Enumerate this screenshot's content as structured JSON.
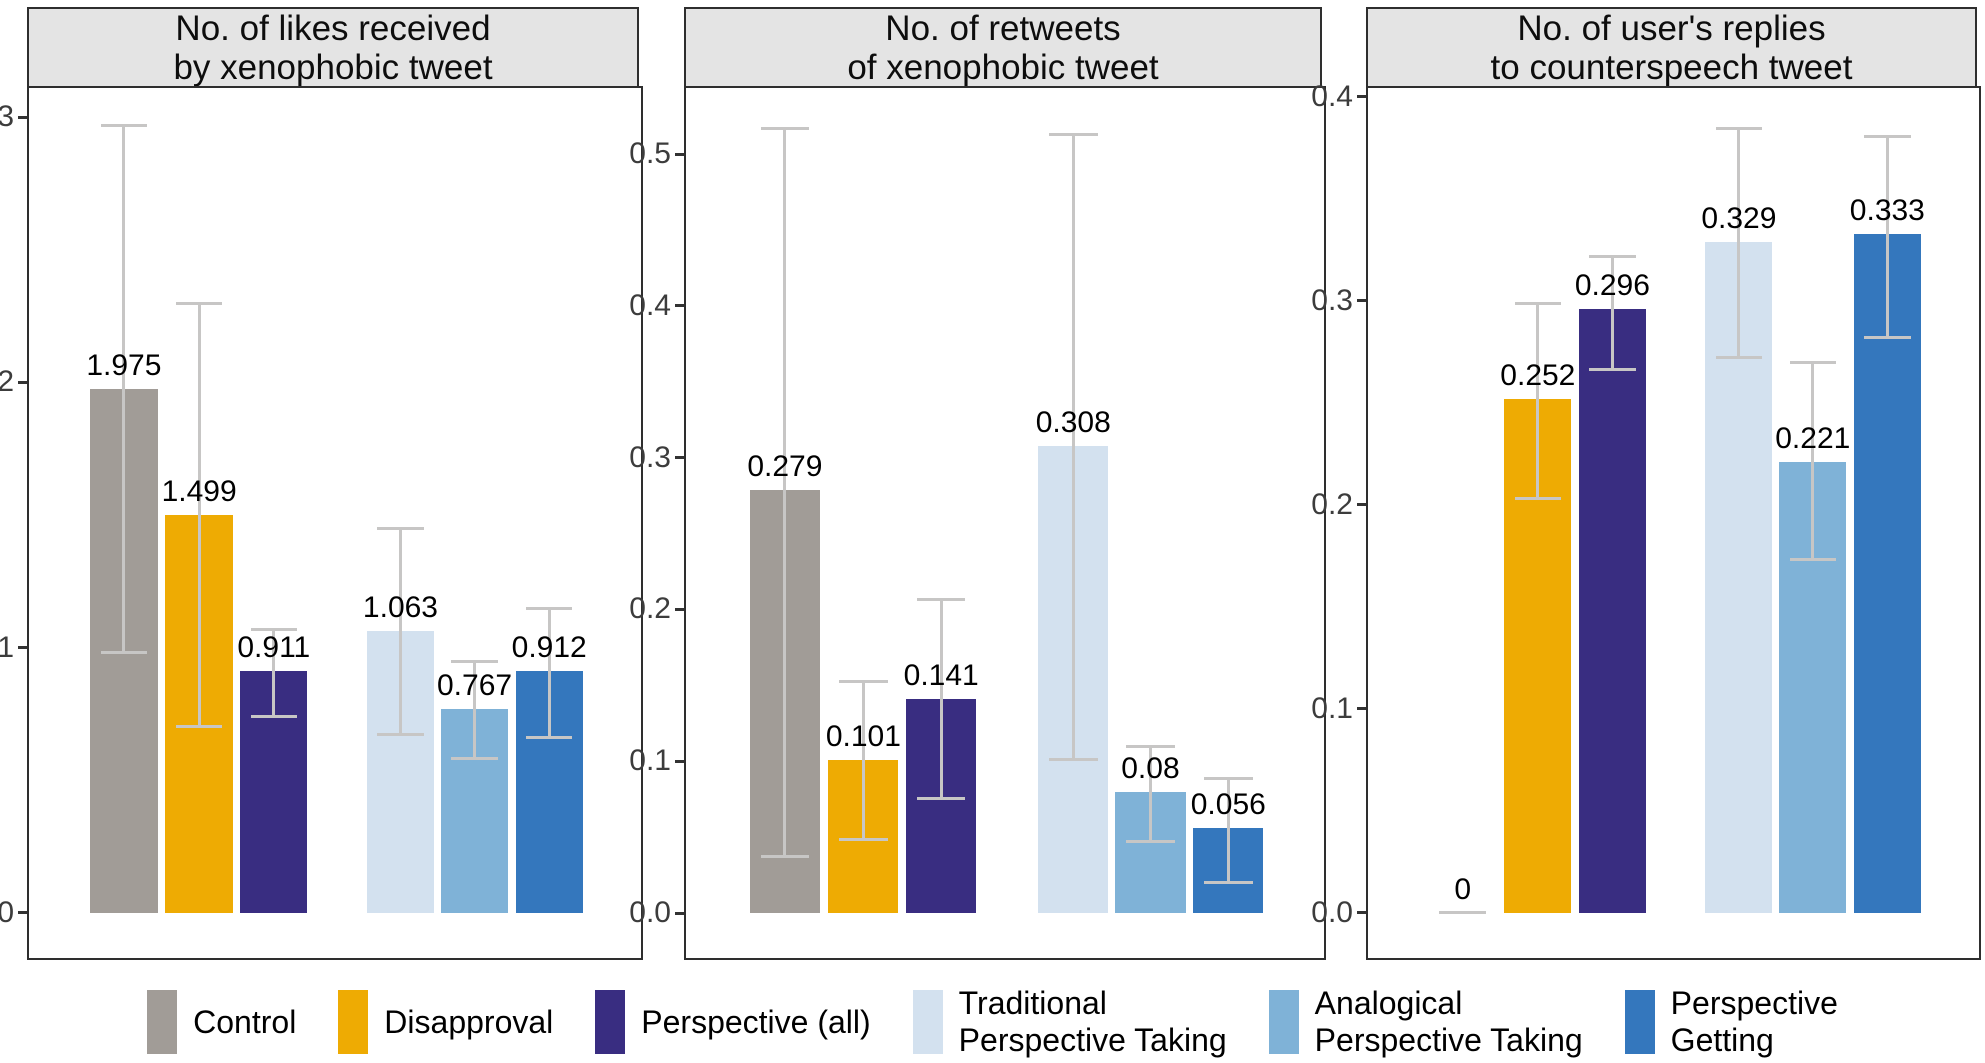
{
  "style": {
    "background": "#ffffff",
    "panel_border": "#2e2e2e",
    "strip_bg": "#e4e4e4",
    "tick_label_color": "#3c3c3c",
    "tick_mark_color": "#333333",
    "errorbar_color": "#c7c6c5",
    "value_label_color": "#000000",
    "bar_colors": [
      "#a19c97",
      "#eeab03",
      "#392d81",
      "#d3e1ef",
      "#7fb2d7",
      "#3477bd"
    ]
  },
  "legend": {
    "position": "bottom",
    "items": [
      {
        "id": "control",
        "lines": [
          "Control"
        ],
        "color_index": 0
      },
      {
        "id": "disapproval",
        "lines": [
          "Disapproval"
        ],
        "color_index": 1
      },
      {
        "id": "perspective-all",
        "lines": [
          "Perspective (all)"
        ],
        "color_index": 2
      },
      {
        "id": "traditional-perspective-taking",
        "lines": [
          "Traditional",
          "Perspective Taking"
        ],
        "color_index": 3
      },
      {
        "id": "analogical-perspective-taking",
        "lines": [
          "Analogical",
          "Perspective Taking"
        ],
        "color_index": 4
      },
      {
        "id": "perspective-getting",
        "lines": [
          "Perspective",
          "Getting"
        ],
        "color_index": 5
      }
    ]
  },
  "chart_data": [
    {
      "type": "bar",
      "id": "likes",
      "title_lines": [
        "No. of likes received",
        "by xenophobic tweet"
      ],
      "categories": [
        "Control",
        "Disapproval",
        "Perspective (all)",
        "Traditional Perspective Taking",
        "Analogical Perspective Taking",
        "Perspective Getting"
      ],
      "values": [
        1.975,
        1.499,
        0.911,
        1.063,
        0.767,
        0.912
      ],
      "value_labels": [
        "1.975",
        "1.499",
        "0.911",
        "1.063",
        "0.767",
        "0.912"
      ],
      "error_low": [
        0.98,
        0.7,
        0.74,
        0.67,
        0.58,
        0.66
      ],
      "error_high": [
        2.97,
        2.3,
        1.07,
        1.45,
        0.95,
        1.15
      ],
      "yticks": [
        {
          "value": 0,
          "label": "0"
        },
        {
          "value": 1,
          "label": "1"
        },
        {
          "value": 2,
          "label": "2"
        },
        {
          "value": 3,
          "label": "3"
        }
      ],
      "ylim": [
        -0.17,
        3.11
      ],
      "grid": false,
      "legend_position": "bottom"
    },
    {
      "type": "bar",
      "id": "retweets",
      "title_lines": [
        "No. of retweets",
        "of xenophobic tweet"
      ],
      "categories": [
        "Control",
        "Disapproval",
        "Perspective (all)",
        "Traditional Perspective Taking",
        "Analogical Perspective Taking",
        "Perspective Getting"
      ],
      "values": [
        0.279,
        0.101,
        0.141,
        0.308,
        0.08,
        0.056
      ],
      "value_labels": [
        "0.279",
        "0.101",
        "0.141",
        "0.308",
        "0.08",
        "0.056"
      ],
      "error_low": [
        0.037,
        0.048,
        0.075,
        0.101,
        0.047,
        0.02
      ],
      "error_high": [
        0.517,
        0.153,
        0.207,
        0.513,
        0.11,
        0.089
      ],
      "yticks": [
        {
          "value": 0.0,
          "label": "0.0"
        },
        {
          "value": 0.1,
          "label": "0.1"
        },
        {
          "value": 0.2,
          "label": "0.2"
        },
        {
          "value": 0.3,
          "label": "0.3"
        },
        {
          "value": 0.4,
          "label": "0.4"
        },
        {
          "value": 0.5,
          "label": "0.5"
        }
      ],
      "ylim": [
        -0.0296,
        0.5435
      ],
      "grid": false,
      "legend_position": "bottom"
    },
    {
      "type": "bar",
      "id": "replies",
      "title_lines": [
        "No. of user's replies",
        "to counterspeech tweet"
      ],
      "categories": [
        "Control",
        "Disapproval",
        "Perspective (all)",
        "Traditional Perspective Taking",
        "Analogical Perspective Taking",
        "Perspective Getting"
      ],
      "values": [
        0,
        0.252,
        0.296,
        0.329,
        0.221,
        0.333
      ],
      "value_labels": [
        "0",
        "0.252",
        "0.296",
        "0.329",
        "0.221",
        "0.333"
      ],
      "error_low": [
        0,
        0.203,
        0.266,
        0.272,
        0.173,
        0.282
      ],
      "error_high": [
        0,
        0.299,
        0.322,
        0.385,
        0.27,
        0.381
      ],
      "yticks": [
        {
          "value": 0.0,
          "label": "0.0"
        },
        {
          "value": 0.1,
          "label": "0.1"
        },
        {
          "value": 0.2,
          "label": "0.2"
        },
        {
          "value": 0.3,
          "label": "0.3"
        },
        {
          "value": 0.4,
          "label": "0.4"
        }
      ],
      "ylim": [
        -0.0221,
        0.4044
      ],
      "grid": false,
      "legend_position": "bottom"
    }
  ]
}
